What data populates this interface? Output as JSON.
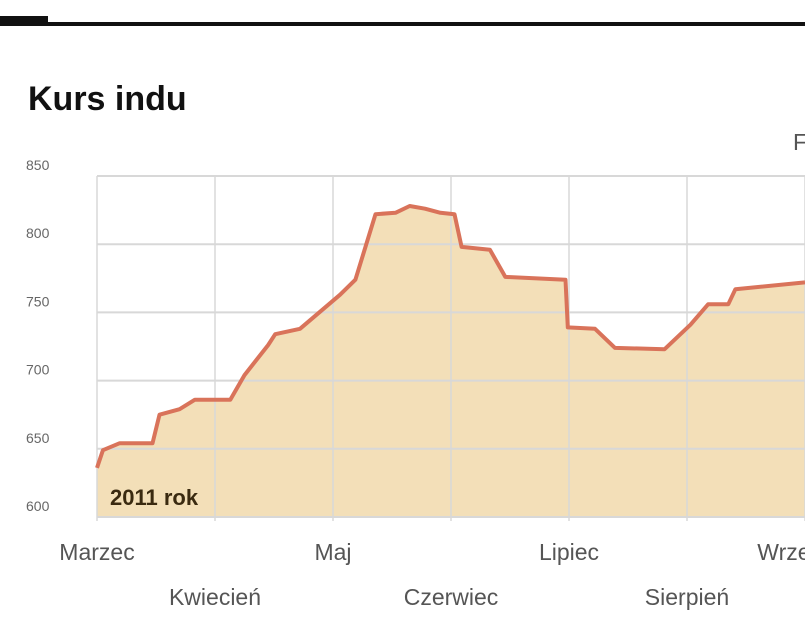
{
  "chart_data": {
    "type": "area",
    "title": "Kurs indu",
    "corner_text": "F",
    "annotation": "2011 rok",
    "xlabel": "",
    "ylabel": "",
    "ylim": [
      600,
      850
    ],
    "yticks": [
      600,
      650,
      700,
      750,
      800,
      850
    ],
    "categories": [
      "Marzec",
      "Kwiecień",
      "Maj",
      "Czerwiec",
      "Lipiec",
      "Sierpień",
      "Wrzesień"
    ],
    "grid": true,
    "colors": {
      "line": "#d9735a",
      "fill": "#f3dfb8",
      "grid": "#d8d8d8",
      "top_rule": "#111111"
    },
    "x": [
      0,
      0.05,
      0.19,
      0.47,
      0.53,
      0.7,
      0.83,
      1.13,
      1.25,
      1.45,
      1.51,
      1.72,
      2.06,
      2.19,
      2.36,
      2.53,
      2.65,
      2.78,
      2.91,
      3.03,
      3.09,
      3.33,
      3.46,
      3.97,
      3.99,
      4.22,
      4.39,
      4.81,
      5.03,
      5.18,
      5.35,
      5.41,
      6.0
    ],
    "values": [
      636,
      649,
      654,
      654,
      675,
      679,
      686,
      686,
      704,
      726,
      734,
      738,
      763,
      774,
      822,
      823,
      828,
      826,
      823,
      822,
      798,
      796,
      776,
      774,
      739,
      738,
      724,
      723,
      741,
      756,
      756,
      767,
      772
    ]
  }
}
